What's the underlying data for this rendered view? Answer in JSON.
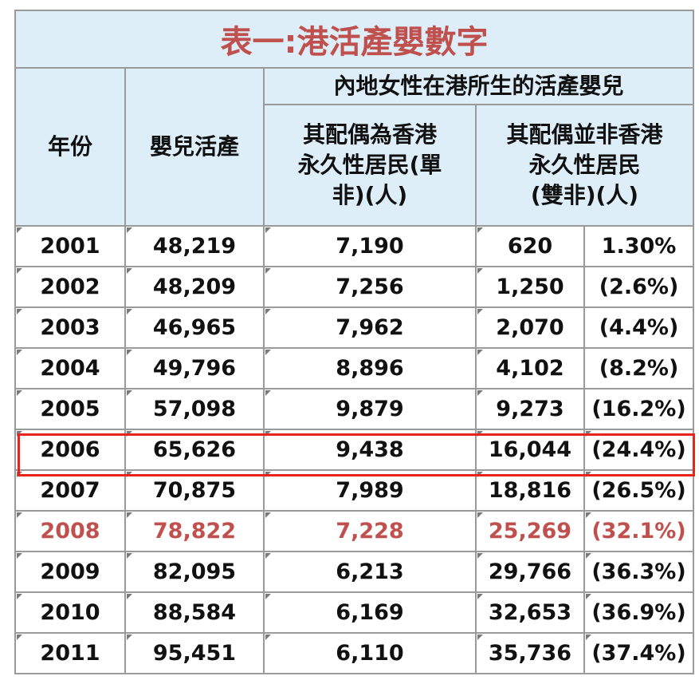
{
  "title": "表一:港活產嬰數字",
  "title_color": "#c0504d",
  "headers": {
    "year": "年份",
    "births": "嬰兒活產",
    "mainland_group": "內地女性在港所生的活產嬰兒",
    "type1_line1": "其配偶為香港",
    "type1_line2": "永久性居民(單",
    "type1_line3": "非)(人)",
    "type2_line1": "其配偶並非香港",
    "type2_line2": "永久性居民",
    "type2_line3": "(雙非)(人)"
  },
  "rows": [
    {
      "year": "2001",
      "births": "48,219",
      "type1": "7,190",
      "type2": "620",
      "pct": "1.30%"
    },
    {
      "year": "2002",
      "births": "48,209",
      "type1": "7,256",
      "type2": "1,250",
      "pct": "(2.6%)"
    },
    {
      "year": "2003",
      "births": "46,965",
      "type1": "7,962",
      "type2": "2,070",
      "pct": "(4.4%)"
    },
    {
      "year": "2004",
      "births": "49,796",
      "type1": "8,896",
      "type2": "4,102",
      "pct": "(8.2%)"
    },
    {
      "year": "2005",
      "births": "57,098",
      "type1": "9,879",
      "type2": "9,273",
      "pct": "(16.2%)"
    },
    {
      "year": "2006",
      "births": "65,626",
      "type1": "9,438",
      "type2": "16,044",
      "pct": "(24.4%)"
    },
    {
      "year": "2007",
      "births": "70,875",
      "type1": "7,989",
      "type2": "18,816",
      "pct": "(26.5%)"
    },
    {
      "year": "2008",
      "births": "78,822",
      "type1": "7,228",
      "type2": "25,269",
      "pct": "(32.1%)"
    },
    {
      "year": "2009",
      "births": "82,095",
      "type1": "6,213",
      "type2": "29,766",
      "pct": "(36.3%)"
    },
    {
      "year": "2010",
      "births": "88,584",
      "type1": "6,169",
      "type2": "32,653",
      "pct": "(36.9%)"
    },
    {
      "year": "2011",
      "births": "95,451",
      "type1": "6,110",
      "type2": "35,736",
      "pct": "(37.4%)"
    }
  ],
  "highlight_row_year": "2006",
  "highlight_color": "#e8241c",
  "red_row_year": "2008",
  "red_row_color": "#c0504d"
}
